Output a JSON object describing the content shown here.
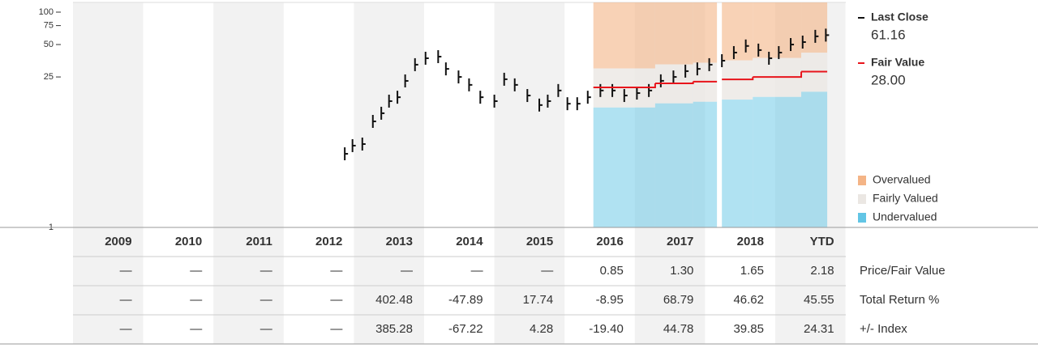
{
  "chart_data": {
    "type": "price-fair-value",
    "categories": [
      "2009",
      "2010",
      "2011",
      "2012",
      "2013",
      "2014",
      "2015",
      "2016",
      "2017",
      "2018",
      "YTD"
    ],
    "xlim": [
      2009,
      2020
    ],
    "ylim": [
      1,
      100
    ],
    "yticks": [
      1,
      25,
      50,
      75,
      100
    ],
    "log_scale": true,
    "price": {
      "name": "Last Close",
      "last_label": "61.16",
      "color": "#111111",
      "x": [
        2012.87,
        2012.98,
        2013.12,
        2013.27,
        2013.39,
        2013.5,
        2013.62,
        2013.73,
        2013.87,
        2014.02,
        2014.2,
        2014.31,
        2014.49,
        2014.64,
        2014.8,
        2015.0,
        2015.14,
        2015.29,
        2015.47,
        2015.64,
        2015.76,
        2015.91,
        2016.04,
        2016.18,
        2016.33,
        2016.51,
        2016.68,
        2016.85,
        2017.03,
        2017.2,
        2017.37,
        2017.55,
        2017.72,
        2017.89,
        2018.06,
        2018.24,
        2018.41,
        2018.58,
        2018.76,
        2018.91,
        2019.05,
        2019.22,
        2019.39,
        2019.57,
        2019.72
      ],
      "values": [
        4.83,
        5.75,
        5.95,
        9.66,
        11.5,
        14.9,
        16.2,
        22.97,
        32.5,
        37.3,
        38.6,
        29.7,
        25.0,
        21.1,
        16.2,
        14.9,
        23.8,
        21.1,
        16.8,
        13.7,
        14.9,
        18.7,
        14.1,
        14.1,
        16.2,
        18.7,
        18.7,
        16.8,
        17.7,
        18.7,
        23.0,
        25.0,
        28.3,
        29.7,
        32.5,
        35.4,
        42.1,
        48.5,
        44.4,
        37.3,
        42.1,
        50.0,
        52.7,
        59.6,
        61.16
      ]
    },
    "fair_value": {
      "name": "Fair Value",
      "last_label": "28.00",
      "color": "#e8141b",
      "x": [
        2016.41,
        2017.29,
        2017.83,
        2018.17,
        2018.24,
        2018.68,
        2019.37,
        2019.74
      ],
      "values": [
        20.0,
        21.8,
        22.6,
        null,
        23.7,
        25.0,
        28.0,
        28.0
      ]
    },
    "bands": [
      {
        "name": "Overvalued",
        "color": "#f4b486",
        "values": [
          30.0,
          32.7,
          33.9,
          null,
          35.6,
          37.5,
          42.0,
          42.0
        ]
      },
      {
        "name": "Fairly Valued",
        "color": "#ebe7e3"
      },
      {
        "name": "Undervalued",
        "color": "#62c5e5",
        "values": [
          13.0,
          14.2,
          14.7,
          null,
          15.4,
          16.3,
          18.2,
          18.2
        ]
      }
    ]
  },
  "table": {
    "rows": [
      {
        "label": "Price/Fair Value",
        "values": [
          "—",
          "—",
          "—",
          "—",
          "—",
          "—",
          "—",
          "0.85",
          "1.30",
          "1.65",
          "2.18"
        ]
      },
      {
        "label": "Total Return %",
        "values": [
          "—",
          "—",
          "—",
          "—",
          "402.48",
          "-47.89",
          "17.74",
          "-8.95",
          "68.79",
          "46.62",
          "45.55"
        ]
      },
      {
        "label": "+/- Index",
        "values": [
          "—",
          "—",
          "—",
          "—",
          "385.28",
          "-67.22",
          "4.28",
          "-19.40",
          "44.78",
          "39.85",
          "24.31"
        ]
      }
    ]
  }
}
